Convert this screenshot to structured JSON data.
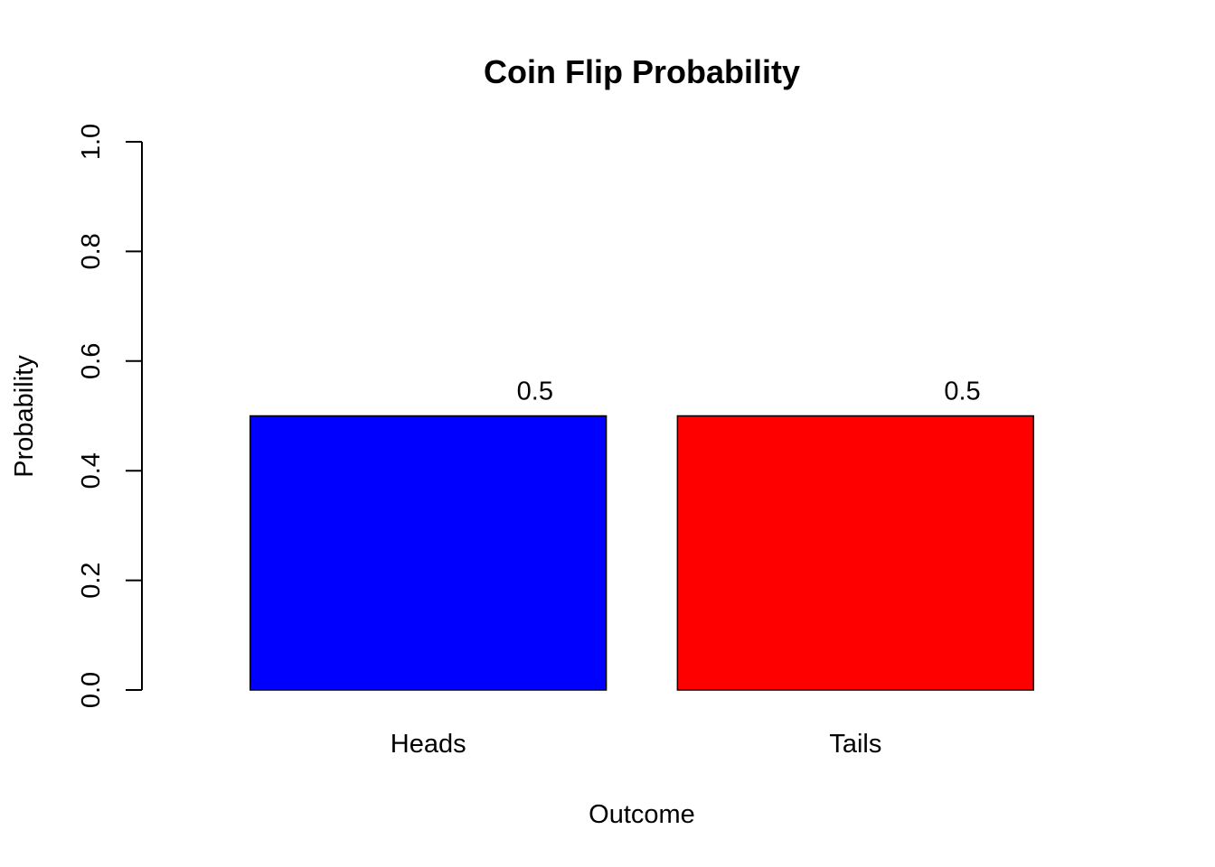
{
  "chart_data": {
    "type": "bar",
    "title": "Coin Flip Probability",
    "xlabel": "Outcome",
    "ylabel": "Probability",
    "categories": [
      "Heads",
      "Tails"
    ],
    "values": [
      0.5,
      0.5
    ],
    "data_labels": [
      "0.5",
      "0.5"
    ],
    "colors": [
      "#0000ff",
      "#ff0000"
    ],
    "ylim": [
      0,
      1
    ],
    "yticks": [
      0.0,
      0.2,
      0.4,
      0.6,
      0.8,
      1.0
    ],
    "ytick_labels": [
      "0.0",
      "0.2",
      "0.4",
      "0.6",
      "0.8",
      "1.0"
    ],
    "grid": false,
    "legend": "none"
  }
}
